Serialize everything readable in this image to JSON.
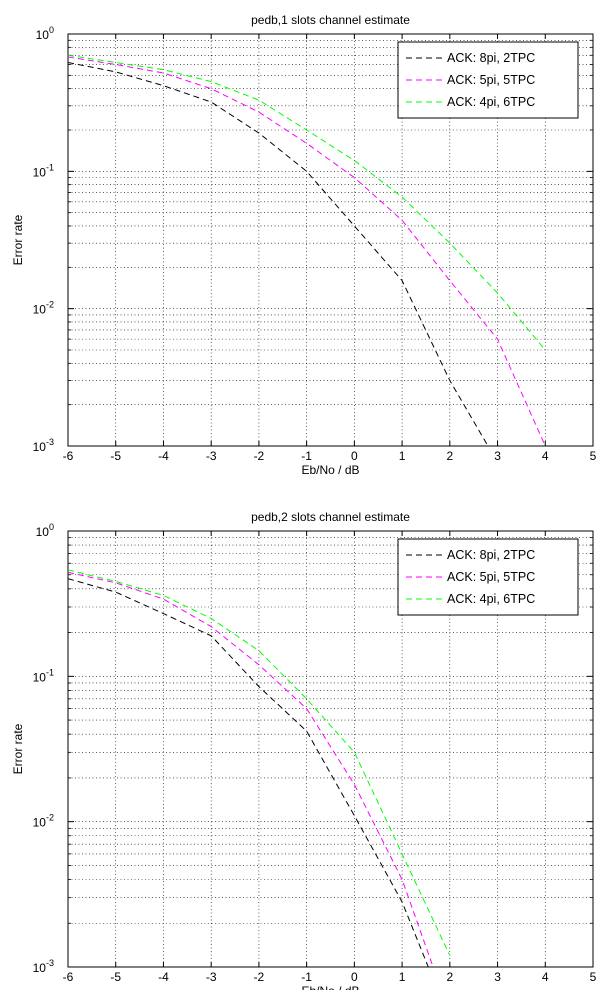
{
  "chart_data": [
    {
      "type": "line",
      "title": "pedb,1 slots channel estimate",
      "xlabel": "Eb/No / dB",
      "ylabel": "Error rate",
      "xlim": [
        -6,
        5
      ],
      "ylim": [
        0.001,
        1
      ],
      "yscale": "log",
      "grid": true,
      "legend_position": "top-right",
      "x_ticks": [
        "-6",
        "-5",
        "-4",
        "-3",
        "-2",
        "-1",
        "0",
        "1",
        "2",
        "3",
        "4",
        "5"
      ],
      "y_ticks": [
        {
          "base": "10",
          "exp": "0",
          "value": 1
        },
        {
          "base": "10",
          "exp": "-1",
          "value": 0.1
        },
        {
          "base": "10",
          "exp": "-2",
          "value": 0.01
        },
        {
          "base": "10",
          "exp": "-3",
          "value": 0.001
        }
      ],
      "series": [
        {
          "name": "ACK: 8pi, 2TPC",
          "color": "#000000",
          "x": [
            -6,
            -5,
            -4,
            -3,
            -2,
            -1,
            0,
            1,
            2,
            2.8
          ],
          "y": [
            0.62,
            0.53,
            0.42,
            0.32,
            0.19,
            0.1,
            0.04,
            0.016,
            0.003,
            0.001
          ]
        },
        {
          "name": "ACK: 5pi, 5TPC",
          "color": "#ff00ff",
          "x": [
            -6,
            -5,
            -4,
            -3,
            -2,
            -1,
            0,
            1,
            2,
            3,
            4
          ],
          "y": [
            0.68,
            0.6,
            0.52,
            0.4,
            0.27,
            0.16,
            0.09,
            0.044,
            0.016,
            0.006,
            0.001
          ]
        },
        {
          "name": "ACK: 4pi, 6TPC",
          "color": "#00ff00",
          "x": [
            -6,
            -5,
            -4,
            -3,
            -2,
            -1,
            0,
            1,
            2,
            3,
            4
          ],
          "y": [
            0.7,
            0.62,
            0.55,
            0.45,
            0.33,
            0.2,
            0.12,
            0.065,
            0.03,
            0.013,
            0.005
          ]
        }
      ]
    },
    {
      "type": "line",
      "title": "pedb,2 slots channel estimate",
      "xlabel": "Eb/No / dB",
      "ylabel": "Error rate",
      "xlim": [
        -6,
        5
      ],
      "ylim": [
        0.001,
        1
      ],
      "yscale": "log",
      "grid": true,
      "legend_position": "top-right",
      "x_ticks": [
        "-6",
        "-5",
        "-4",
        "-3",
        "-2",
        "-1",
        "0",
        "1",
        "2",
        "3",
        "4",
        "5"
      ],
      "y_ticks": [
        {
          "base": "10",
          "exp": "0",
          "value": 1
        },
        {
          "base": "10",
          "exp": "-1",
          "value": 0.1
        },
        {
          "base": "10",
          "exp": "-2",
          "value": 0.01
        },
        {
          "base": "10",
          "exp": "-3",
          "value": 0.001
        }
      ],
      "series": [
        {
          "name": "ACK: 8pi, 2TPC",
          "color": "#000000",
          "x": [
            -6,
            -5,
            -4,
            -3,
            -2,
            -1,
            0,
            1,
            1.55
          ],
          "y": [
            0.47,
            0.38,
            0.27,
            0.19,
            0.085,
            0.042,
            0.011,
            0.0028,
            0.001
          ]
        },
        {
          "name": "ACK: 5pi, 5TPC",
          "color": "#ff00ff",
          "x": [
            -6,
            -5,
            -4,
            -3,
            -2,
            -1,
            0,
            1,
            1.65
          ],
          "y": [
            0.52,
            0.44,
            0.34,
            0.22,
            0.12,
            0.06,
            0.018,
            0.004,
            0.001
          ]
        },
        {
          "name": "ACK: 4pi, 6TPC",
          "color": "#00ff00",
          "x": [
            -6,
            -5,
            -4,
            -3,
            -2,
            -1,
            0,
            1,
            2
          ],
          "y": [
            0.54,
            0.45,
            0.36,
            0.25,
            0.15,
            0.07,
            0.03,
            0.006,
            0.0012
          ]
        }
      ]
    }
  ]
}
